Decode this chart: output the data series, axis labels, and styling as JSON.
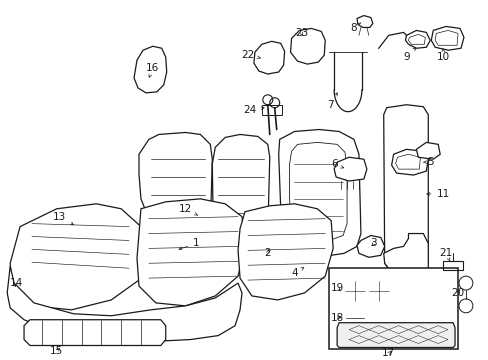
{
  "bg_color": "#ffffff",
  "line_color": "#1a1a1a",
  "figsize": [
    4.89,
    3.6
  ],
  "dpi": 100,
  "label_fs": 7.5
}
